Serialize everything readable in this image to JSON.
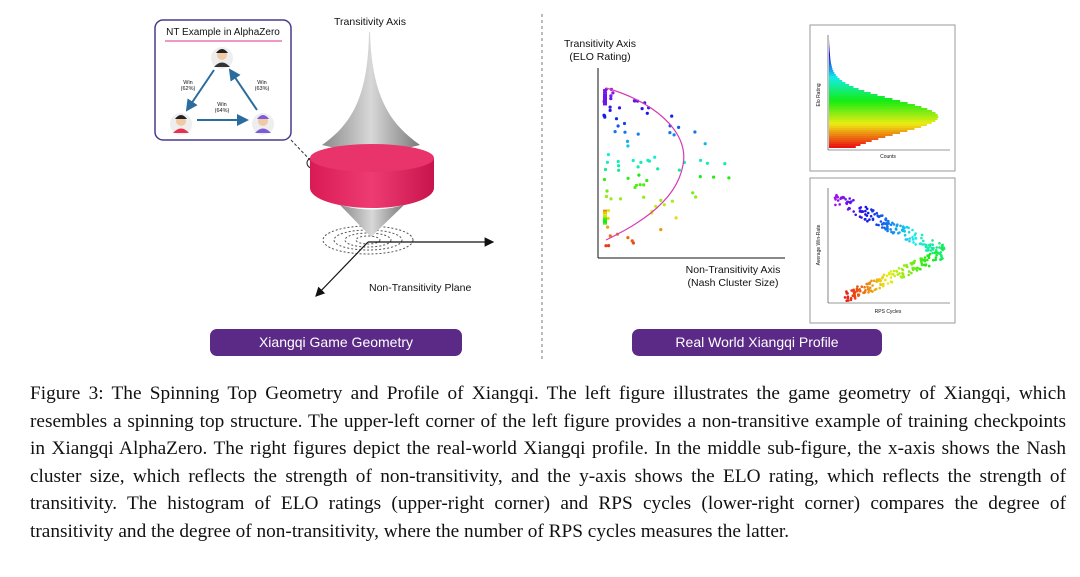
{
  "left_panel": {
    "inset_title": "NT Example in AlphaZero",
    "win_labels": [
      {
        "label": "Win",
        "value": "(62%)"
      },
      {
        "label": "Win",
        "value": "(63%)"
      },
      {
        "label": "Win",
        "value": "(64%)"
      }
    ],
    "axis_label": "Transitivity Axis",
    "plane_label": "Non-Transitivity Plane",
    "button": "Xiangqi Game Geometry"
  },
  "right_panel": {
    "y_axis_label": [
      "Transitivity Axis",
      "(ELO Rating)"
    ],
    "x_axis_label": [
      "Non-Transitivity Axis",
      "(Nash Cluster Size)"
    ],
    "histogram": {
      "y_label": "Elo Rating",
      "x_label": "Counts"
    },
    "scatter": {
      "y_label": "Average Win-Rate",
      "x_label": "RPS Cycles"
    },
    "button": "Real World Xiangqi Profile"
  },
  "caption": {
    "label": "Figure 3:",
    "text": "The Spinning Top Geometry and Profile of Xiangqi. The left figure illustrates the game geometry of Xiangqi, which resembles a spinning top structure. The upper-left corner of the left figure provides a non-transitive example of training checkpoints in Xiangqi AlphaZero. The right figures depict the real-world Xiangqi profile. In the middle sub-figure, the x-axis shows the Nash cluster size, which reflects the strength of non-transitivity, and the y-axis shows the ELO rating, which reflects the strength of transitivity. The histogram of ELO ratings (upper-right corner) and RPS cycles (lower-right corner) compares the degree of transitivity and the degree of non-transitivity, where the number of RPS cycles measures the latter."
  }
}
